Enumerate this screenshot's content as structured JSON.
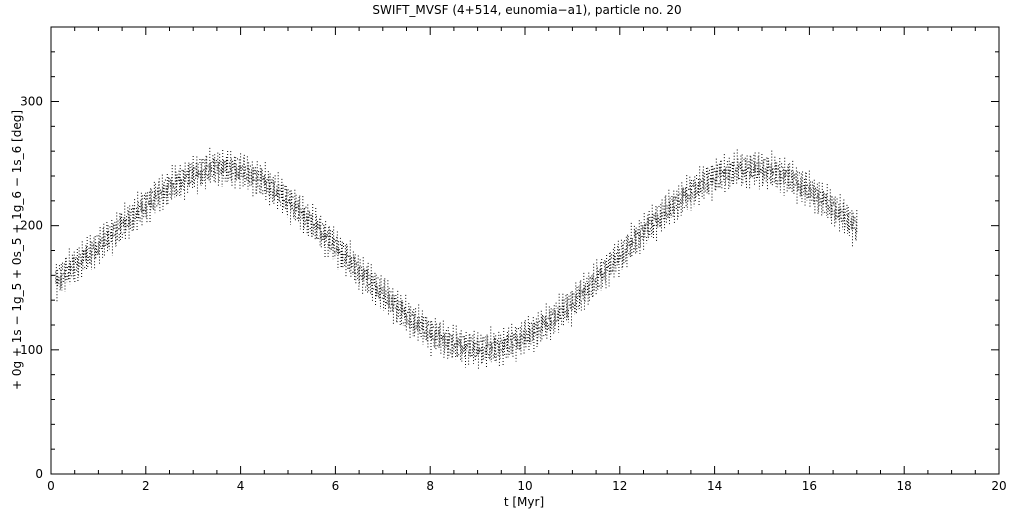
{
  "chart_data": {
    "type": "scatter",
    "title": "SWIFT_MVSF (4+514, eunomia−a1), particle no. 20",
    "xlabel": "t [Myr]",
    "ylabel": "+ 0g + 1s − 1g_5 + 0s_5 + 1g_6 − 1s_6 [deg]",
    "xlim": [
      0,
      20
    ],
    "ylim": [
      0,
      360
    ],
    "x_ticks": [
      0,
      2,
      4,
      6,
      8,
      10,
      12,
      14,
      16,
      18,
      20
    ],
    "y_ticks": [
      0,
      100,
      200,
      300
    ],
    "x_tick_labels": [
      "0",
      "2",
      "4",
      "6",
      "8",
      "10",
      "12",
      "14",
      "16",
      "18",
      "20"
    ],
    "y_tick_labels": [
      "0",
      "100",
      "200",
      "300"
    ],
    "grid": false,
    "marker_color": "#000000",
    "series": [
      {
        "x": [
          0.1,
          0.5,
          1.0,
          1.5,
          2.0,
          2.5,
          3.0,
          3.5,
          4.0,
          4.5,
          5.0,
          5.5,
          6.0,
          6.5,
          7.0,
          7.5,
          8.0,
          8.5,
          9.0,
          9.5,
          10.0,
          10.5,
          11.0,
          11.5,
          12.0,
          12.5,
          13.0,
          13.5,
          14.0,
          14.5,
          15.0,
          15.5,
          16.0,
          16.5,
          17.0
        ],
        "y": [
          155,
          168,
          183,
          200,
          216,
          231,
          241,
          247,
          244,
          235,
          220,
          202,
          183,
          163,
          145,
          127,
          113,
          104,
          100,
          102,
          110,
          122,
          137,
          156,
          175,
          195,
          212,
          227,
          239,
          245,
          245,
          240,
          228,
          214,
          198
        ]
      }
    ]
  }
}
